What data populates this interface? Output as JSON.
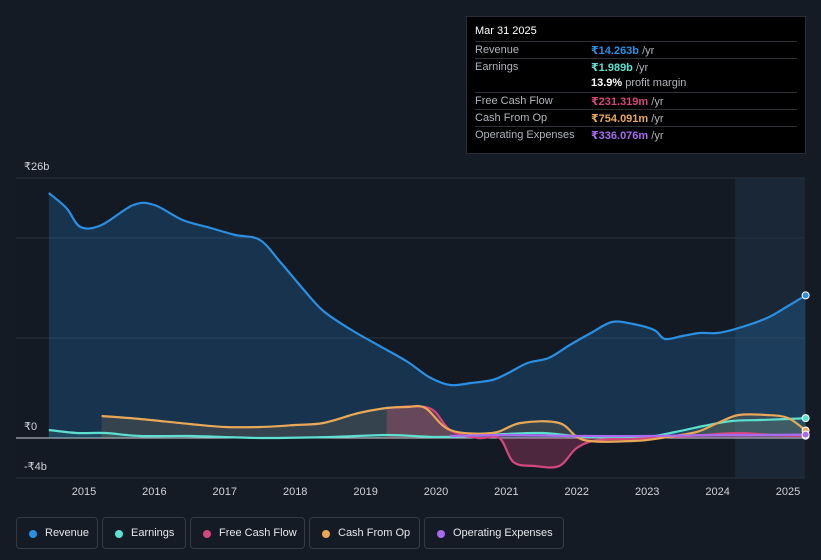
{
  "chart_data": {
    "type": "area",
    "title": "",
    "ylim": [
      -4,
      26
    ],
    "y_tick_labels": [
      "₹26b",
      "₹0",
      "-₹4b"
    ],
    "x_tick_labels": [
      "2015",
      "2016",
      "2017",
      "2018",
      "2019",
      "2020",
      "2021",
      "2022",
      "2023",
      "2024",
      "2025"
    ],
    "unit": "₹ billions",
    "series": [
      {
        "name": "Revenue",
        "color": "#2a8fe2",
        "points": [
          [
            2014.5,
            24.5
          ],
          [
            2014.75,
            23.0
          ],
          [
            2014.95,
            21.1
          ],
          [
            2015.25,
            21.3
          ],
          [
            2015.7,
            23.3
          ],
          [
            2016.0,
            23.3
          ],
          [
            2016.4,
            21.8
          ],
          [
            2016.8,
            21.0
          ],
          [
            2017.15,
            20.3
          ],
          [
            2017.5,
            19.8
          ],
          [
            2017.8,
            17.5
          ],
          [
            2018.1,
            15.0
          ],
          [
            2018.4,
            12.7
          ],
          [
            2018.8,
            10.8
          ],
          [
            2019.2,
            9.2
          ],
          [
            2019.6,
            7.6
          ],
          [
            2019.9,
            6.1
          ],
          [
            2020.2,
            5.3
          ],
          [
            2020.5,
            5.5
          ],
          [
            2020.8,
            5.8
          ],
          [
            2021.0,
            6.4
          ],
          [
            2021.3,
            7.5
          ],
          [
            2021.6,
            8.0
          ],
          [
            2021.9,
            9.3
          ],
          [
            2022.2,
            10.5
          ],
          [
            2022.5,
            11.6
          ],
          [
            2022.8,
            11.4
          ],
          [
            2023.1,
            10.8
          ],
          [
            2023.25,
            9.9
          ],
          [
            2023.5,
            10.2
          ],
          [
            2023.75,
            10.5
          ],
          [
            2024.0,
            10.5
          ],
          [
            2024.3,
            11.0
          ],
          [
            2024.7,
            12.0
          ],
          [
            2025.0,
            13.2
          ],
          [
            2025.25,
            14.263
          ]
        ]
      },
      {
        "name": "Earnings",
        "color": "#5ee0d0",
        "points": [
          [
            2014.5,
            0.8
          ],
          [
            2014.9,
            0.5
          ],
          [
            2015.3,
            0.5
          ],
          [
            2015.8,
            0.2
          ],
          [
            2016.5,
            0.2
          ],
          [
            2017.5,
            0.0
          ],
          [
            2018.5,
            0.1
          ],
          [
            2019.3,
            0.3
          ],
          [
            2020.0,
            0.1
          ],
          [
            2020.5,
            0.2
          ],
          [
            2021.0,
            0.4
          ],
          [
            2021.5,
            0.5
          ],
          [
            2022.0,
            0.2
          ],
          [
            2022.5,
            0.0
          ],
          [
            2023.0,
            0.1
          ],
          [
            2023.4,
            0.6
          ],
          [
            2023.8,
            1.2
          ],
          [
            2024.2,
            1.7
          ],
          [
            2024.6,
            1.8
          ],
          [
            2025.0,
            1.9
          ],
          [
            2025.25,
            1.989
          ]
        ]
      },
      {
        "name": "Free Cash Flow",
        "color": "#d4477c",
        "points": [
          [
            2019.3,
            3.0
          ],
          [
            2019.9,
            3.0
          ],
          [
            2020.2,
            0.8
          ],
          [
            2020.6,
            0.0
          ],
          [
            2020.9,
            0.0
          ],
          [
            2021.1,
            -2.4
          ],
          [
            2021.4,
            -2.8
          ],
          [
            2021.75,
            -2.8
          ],
          [
            2022.0,
            -1.0
          ],
          [
            2022.3,
            -0.2
          ],
          [
            2022.8,
            -0.1
          ],
          [
            2023.3,
            0.1
          ],
          [
            2023.8,
            0.3
          ],
          [
            2024.3,
            0.5
          ],
          [
            2024.8,
            0.3
          ],
          [
            2025.25,
            0.231
          ]
        ]
      },
      {
        "name": "Cash From Op",
        "color": "#e8a857",
        "points": [
          [
            2015.25,
            2.2
          ],
          [
            2015.8,
            1.9
          ],
          [
            2016.5,
            1.4
          ],
          [
            2017.0,
            1.1
          ],
          [
            2017.5,
            1.1
          ],
          [
            2018.0,
            1.3
          ],
          [
            2018.4,
            1.5
          ],
          [
            2018.9,
            2.5
          ],
          [
            2019.3,
            3.0
          ],
          [
            2019.6,
            3.1
          ],
          [
            2019.85,
            3.0
          ],
          [
            2020.2,
            0.8
          ],
          [
            2020.8,
            0.5
          ],
          [
            2021.2,
            1.5
          ],
          [
            2021.75,
            1.5
          ],
          [
            2022.1,
            -0.2
          ],
          [
            2022.8,
            -0.3
          ],
          [
            2023.2,
            0.0
          ],
          [
            2023.7,
            0.6
          ],
          [
            2024.0,
            1.5
          ],
          [
            2024.3,
            2.3
          ],
          [
            2024.7,
            2.3
          ],
          [
            2025.0,
            2.0
          ],
          [
            2025.25,
            0.754
          ]
        ]
      },
      {
        "name": "Operating Expenses",
        "color": "#a86bf0",
        "points": [
          [
            2020.2,
            0.2
          ],
          [
            2021.0,
            0.3
          ],
          [
            2022.0,
            0.2
          ],
          [
            2023.0,
            0.2
          ],
          [
            2024.0,
            0.3
          ],
          [
            2024.5,
            0.3
          ],
          [
            2025.25,
            0.336
          ]
        ]
      }
    ],
    "forecast_start": 2024.25
  },
  "tooltip": {
    "date": "Mar 31 2025",
    "rows": [
      {
        "label": "Revenue",
        "value": "₹14.263b",
        "unit": "/yr",
        "color": "#2a8fe2"
      },
      {
        "label": "Earnings",
        "value": "₹1.989b",
        "unit": "/yr",
        "color": "#5ee0d0"
      },
      {
        "label": "",
        "value": "13.9%",
        "unit": "profit margin",
        "color": "#ffffff"
      },
      {
        "label": "Free Cash Flow",
        "value": "₹231.319m",
        "unit": "/yr",
        "color": "#d4477c"
      },
      {
        "label": "Cash From Op",
        "value": "₹754.091m",
        "unit": "/yr",
        "color": "#e8a857"
      },
      {
        "label": "Operating Expenses",
        "value": "₹336.076m",
        "unit": "/yr",
        "color": "#a86bf0"
      }
    ]
  },
  "legend": [
    {
      "label": "Revenue",
      "color": "#2a8fe2"
    },
    {
      "label": "Earnings",
      "color": "#5ee0d0"
    },
    {
      "label": "Free Cash Flow",
      "color": "#d4477c"
    },
    {
      "label": "Cash From Op",
      "color": "#e8a857"
    },
    {
      "label": "Operating Expenses",
      "color": "#a86bf0"
    }
  ]
}
